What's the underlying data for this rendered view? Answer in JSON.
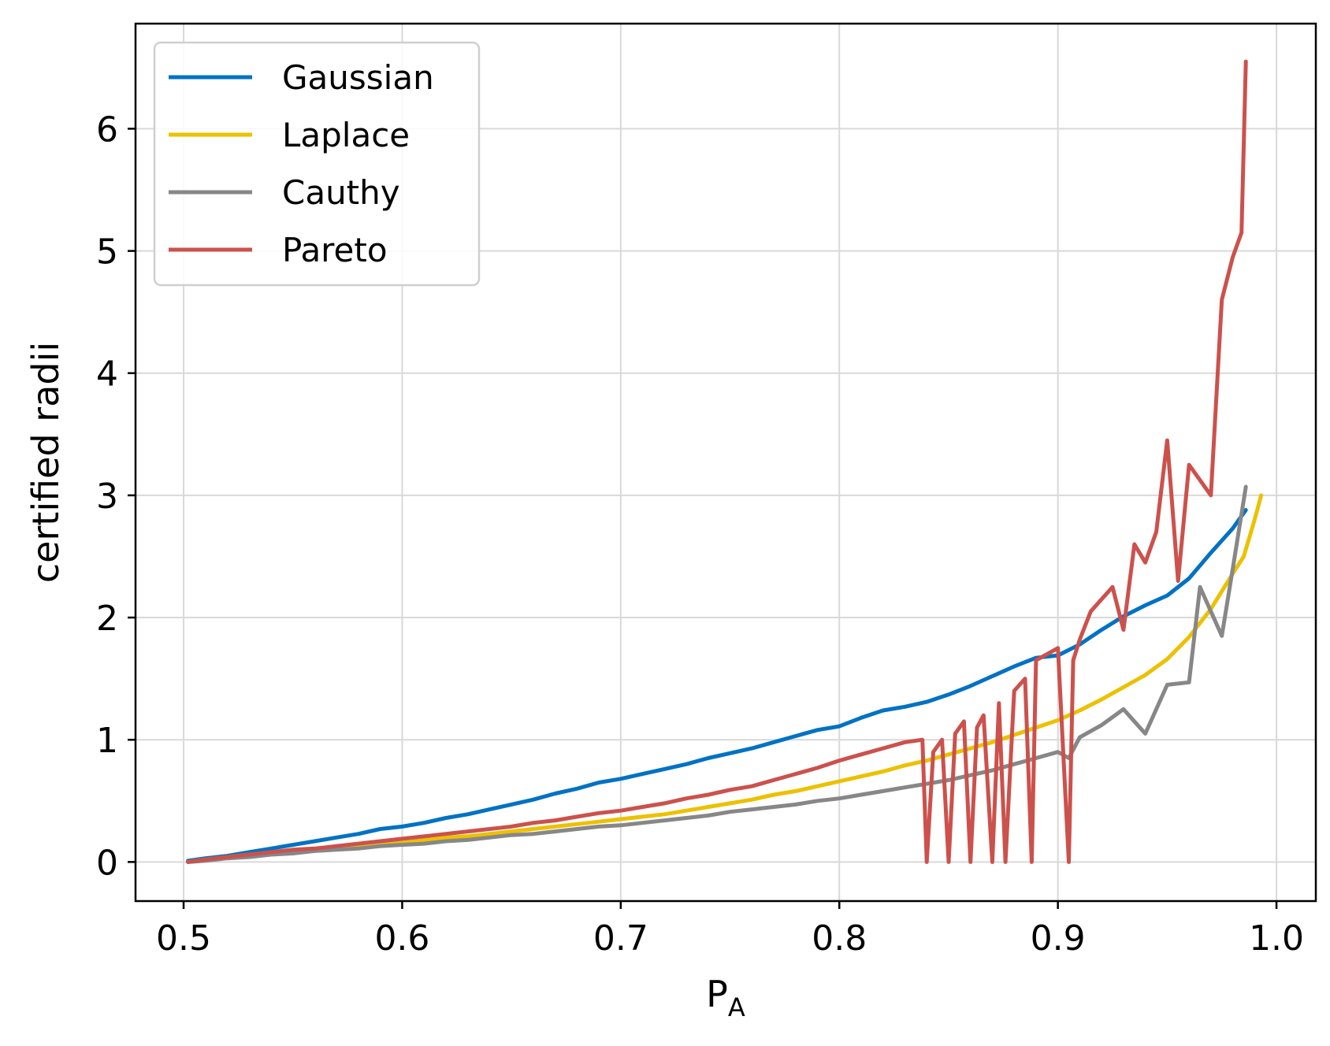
{
  "chart_data": {
    "type": "line",
    "title": "",
    "xlabel": "P",
    "xlabel_subscript": "A",
    "ylabel": "certified radii",
    "xlim": [
      0.478,
      1.018
    ],
    "ylim": [
      -0.32,
      6.86
    ],
    "xticks": [
      0.5,
      0.6,
      0.7,
      0.8,
      0.9,
      1.0
    ],
    "xtick_labels": [
      "0.5",
      "0.6",
      "0.7",
      "0.8",
      "0.9",
      "1.0"
    ],
    "yticks": [
      0,
      1,
      2,
      3,
      4,
      5,
      6
    ],
    "ytick_labels": [
      "0",
      "1",
      "2",
      "3",
      "4",
      "5",
      "6"
    ],
    "grid": true,
    "legend_position": "top-left",
    "series": [
      {
        "name": "Gaussian",
        "color": "#0072c4",
        "points": [
          [
            0.502,
            0.01
          ],
          [
            0.51,
            0.03
          ],
          [
            0.52,
            0.05
          ],
          [
            0.53,
            0.08
          ],
          [
            0.54,
            0.11
          ],
          [
            0.55,
            0.14
          ],
          [
            0.56,
            0.17
          ],
          [
            0.57,
            0.2
          ],
          [
            0.58,
            0.23
          ],
          [
            0.59,
            0.27
          ],
          [
            0.6,
            0.29
          ],
          [
            0.61,
            0.32
          ],
          [
            0.62,
            0.36
          ],
          [
            0.63,
            0.39
          ],
          [
            0.64,
            0.43
          ],
          [
            0.65,
            0.47
          ],
          [
            0.66,
            0.51
          ],
          [
            0.67,
            0.56
          ],
          [
            0.68,
            0.6
          ],
          [
            0.69,
            0.65
          ],
          [
            0.7,
            0.68
          ],
          [
            0.71,
            0.72
          ],
          [
            0.72,
            0.76
          ],
          [
            0.73,
            0.8
          ],
          [
            0.74,
            0.85
          ],
          [
            0.75,
            0.89
          ],
          [
            0.76,
            0.93
          ],
          [
            0.77,
            0.98
          ],
          [
            0.78,
            1.03
          ],
          [
            0.79,
            1.08
          ],
          [
            0.8,
            1.11
          ],
          [
            0.81,
            1.18
          ],
          [
            0.82,
            1.24
          ],
          [
            0.83,
            1.27
          ],
          [
            0.84,
            1.31
          ],
          [
            0.85,
            1.37
          ],
          [
            0.86,
            1.44
          ],
          [
            0.87,
            1.52
          ],
          [
            0.88,
            1.6
          ],
          [
            0.89,
            1.67
          ],
          [
            0.9,
            1.69
          ],
          [
            0.91,
            1.78
          ],
          [
            0.92,
            1.9
          ],
          [
            0.93,
            2.01
          ],
          [
            0.94,
            2.1
          ],
          [
            0.95,
            2.18
          ],
          [
            0.96,
            2.32
          ],
          [
            0.97,
            2.53
          ],
          [
            0.98,
            2.73
          ],
          [
            0.986,
            2.88
          ]
        ]
      },
      {
        "name": "Laplace",
        "color": "#ecc100",
        "points": [
          [
            0.502,
            0.0
          ],
          [
            0.51,
            0.02
          ],
          [
            0.52,
            0.04
          ],
          [
            0.53,
            0.06
          ],
          [
            0.54,
            0.07
          ],
          [
            0.55,
            0.09
          ],
          [
            0.56,
            0.1
          ],
          [
            0.57,
            0.12
          ],
          [
            0.58,
            0.13
          ],
          [
            0.59,
            0.15
          ],
          [
            0.6,
            0.16
          ],
          [
            0.61,
            0.18
          ],
          [
            0.62,
            0.2
          ],
          [
            0.63,
            0.21
          ],
          [
            0.64,
            0.23
          ],
          [
            0.65,
            0.25
          ],
          [
            0.66,
            0.27
          ],
          [
            0.67,
            0.29
          ],
          [
            0.68,
            0.31
          ],
          [
            0.69,
            0.33
          ],
          [
            0.7,
            0.35
          ],
          [
            0.71,
            0.37
          ],
          [
            0.72,
            0.39
          ],
          [
            0.73,
            0.42
          ],
          [
            0.74,
            0.45
          ],
          [
            0.75,
            0.48
          ],
          [
            0.76,
            0.51
          ],
          [
            0.77,
            0.55
          ],
          [
            0.78,
            0.58
          ],
          [
            0.79,
            0.62
          ],
          [
            0.8,
            0.66
          ],
          [
            0.81,
            0.7
          ],
          [
            0.82,
            0.74
          ],
          [
            0.83,
            0.79
          ],
          [
            0.84,
            0.83
          ],
          [
            0.85,
            0.88
          ],
          [
            0.86,
            0.93
          ],
          [
            0.87,
            0.98
          ],
          [
            0.88,
            1.04
          ],
          [
            0.89,
            1.1
          ],
          [
            0.9,
            1.16
          ],
          [
            0.91,
            1.24
          ],
          [
            0.92,
            1.33
          ],
          [
            0.93,
            1.43
          ],
          [
            0.94,
            1.53
          ],
          [
            0.95,
            1.66
          ],
          [
            0.96,
            1.84
          ],
          [
            0.97,
            2.07
          ],
          [
            0.98,
            2.36
          ],
          [
            0.985,
            2.5
          ],
          [
            0.99,
            2.8
          ],
          [
            0.993,
            3.0
          ]
        ]
      },
      {
        "name": "Cauthy",
        "color": "#878787",
        "points": [
          [
            0.502,
            0.0
          ],
          [
            0.51,
            0.01
          ],
          [
            0.52,
            0.03
          ],
          [
            0.53,
            0.04
          ],
          [
            0.54,
            0.06
          ],
          [
            0.55,
            0.07
          ],
          [
            0.56,
            0.09
          ],
          [
            0.57,
            0.1
          ],
          [
            0.58,
            0.11
          ],
          [
            0.59,
            0.13
          ],
          [
            0.6,
            0.14
          ],
          [
            0.61,
            0.15
          ],
          [
            0.62,
            0.17
          ],
          [
            0.63,
            0.18
          ],
          [
            0.64,
            0.2
          ],
          [
            0.65,
            0.22
          ],
          [
            0.66,
            0.23
          ],
          [
            0.67,
            0.25
          ],
          [
            0.68,
            0.27
          ],
          [
            0.69,
            0.29
          ],
          [
            0.7,
            0.3
          ],
          [
            0.71,
            0.32
          ],
          [
            0.72,
            0.34
          ],
          [
            0.73,
            0.36
          ],
          [
            0.74,
            0.38
          ],
          [
            0.75,
            0.41
          ],
          [
            0.76,
            0.43
          ],
          [
            0.77,
            0.45
          ],
          [
            0.78,
            0.47
          ],
          [
            0.79,
            0.5
          ],
          [
            0.8,
            0.52
          ],
          [
            0.81,
            0.55
          ],
          [
            0.82,
            0.58
          ],
          [
            0.83,
            0.61
          ],
          [
            0.84,
            0.64
          ],
          [
            0.85,
            0.67
          ],
          [
            0.86,
            0.71
          ],
          [
            0.87,
            0.75
          ],
          [
            0.88,
            0.8
          ],
          [
            0.89,
            0.85
          ],
          [
            0.9,
            0.9
          ],
          [
            0.905,
            0.85
          ],
          [
            0.91,
            1.02
          ],
          [
            0.92,
            1.12
          ],
          [
            0.93,
            1.25
          ],
          [
            0.94,
            1.05
          ],
          [
            0.95,
            1.45
          ],
          [
            0.96,
            1.47
          ],
          [
            0.965,
            2.25
          ],
          [
            0.975,
            1.85
          ],
          [
            0.98,
            2.4
          ],
          [
            0.986,
            3.07
          ]
        ]
      },
      {
        "name": "Pareto",
        "color": "#cc514c",
        "points": [
          [
            0.502,
            0.0
          ],
          [
            0.51,
            0.02
          ],
          [
            0.52,
            0.04
          ],
          [
            0.53,
            0.06
          ],
          [
            0.54,
            0.08
          ],
          [
            0.55,
            0.1
          ],
          [
            0.56,
            0.11
          ],
          [
            0.57,
            0.13
          ],
          [
            0.58,
            0.15
          ],
          [
            0.59,
            0.17
          ],
          [
            0.6,
            0.19
          ],
          [
            0.61,
            0.21
          ],
          [
            0.62,
            0.23
          ],
          [
            0.63,
            0.25
          ],
          [
            0.64,
            0.27
          ],
          [
            0.65,
            0.29
          ],
          [
            0.66,
            0.32
          ],
          [
            0.67,
            0.34
          ],
          [
            0.68,
            0.37
          ],
          [
            0.69,
            0.4
          ],
          [
            0.7,
            0.42
          ],
          [
            0.71,
            0.45
          ],
          [
            0.72,
            0.48
          ],
          [
            0.73,
            0.52
          ],
          [
            0.74,
            0.55
          ],
          [
            0.75,
            0.59
          ],
          [
            0.76,
            0.62
          ],
          [
            0.77,
            0.67
          ],
          [
            0.78,
            0.72
          ],
          [
            0.79,
            0.77
          ],
          [
            0.8,
            0.83
          ],
          [
            0.81,
            0.88
          ],
          [
            0.82,
            0.93
          ],
          [
            0.83,
            0.98
          ],
          [
            0.838,
            1.0
          ],
          [
            0.84,
            0.0
          ],
          [
            0.843,
            0.9
          ],
          [
            0.847,
            1.0
          ],
          [
            0.85,
            0.0
          ],
          [
            0.853,
            1.05
          ],
          [
            0.857,
            1.15
          ],
          [
            0.86,
            0.0
          ],
          [
            0.863,
            1.1
          ],
          [
            0.866,
            1.2
          ],
          [
            0.87,
            0.0
          ],
          [
            0.873,
            1.3
          ],
          [
            0.876,
            0.0
          ],
          [
            0.88,
            1.4
          ],
          [
            0.885,
            1.5
          ],
          [
            0.888,
            0.0
          ],
          [
            0.89,
            1.65
          ],
          [
            0.895,
            1.7
          ],
          [
            0.9,
            1.75
          ],
          [
            0.905,
            0.0
          ],
          [
            0.907,
            1.65
          ],
          [
            0.91,
            1.82
          ],
          [
            0.915,
            2.05
          ],
          [
            0.92,
            2.15
          ],
          [
            0.925,
            2.25
          ],
          [
            0.93,
            1.9
          ],
          [
            0.935,
            2.6
          ],
          [
            0.94,
            2.45
          ],
          [
            0.945,
            2.7
          ],
          [
            0.95,
            3.45
          ],
          [
            0.955,
            2.3
          ],
          [
            0.96,
            3.25
          ],
          [
            0.97,
            3.0
          ],
          [
            0.975,
            4.6
          ],
          [
            0.98,
            4.95
          ],
          [
            0.984,
            5.15
          ],
          [
            0.986,
            6.55
          ]
        ]
      }
    ]
  }
}
